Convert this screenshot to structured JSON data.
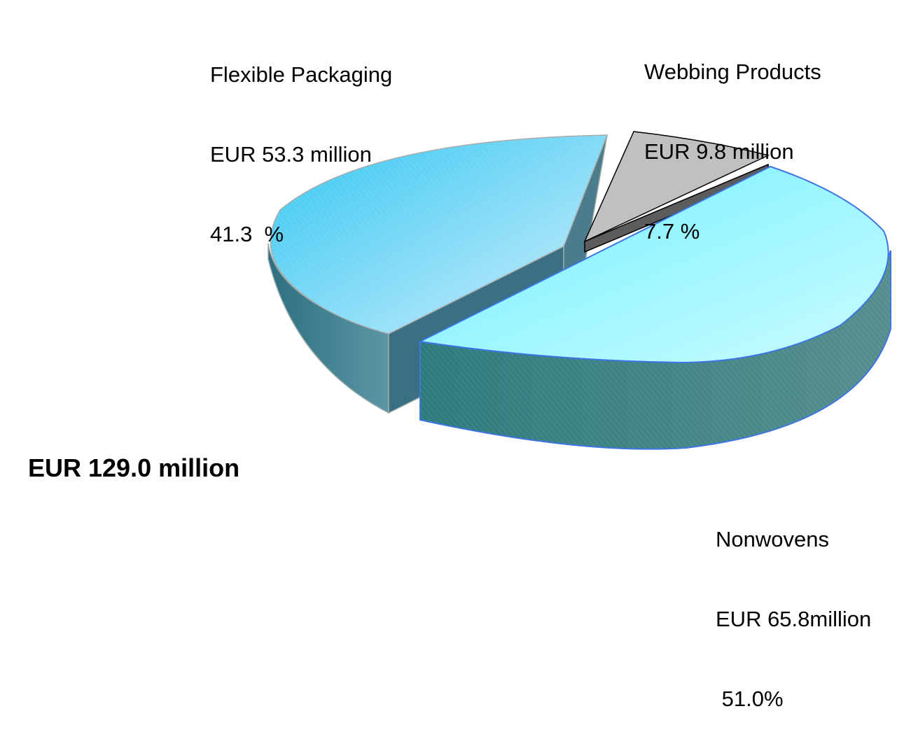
{
  "chart_data": {
    "type": "pie",
    "style": "3d-exploded",
    "total_label": "EUR 129.0 million",
    "slices": [
      {
        "category": "Flexible Packaging",
        "amount": "EUR 53.3 million",
        "percent_label": "41.3  %",
        "value": 41.3,
        "color": "#5ed0f8"
      },
      {
        "category": "Webbing Products",
        "amount": "EUR 9.8 million",
        "percent_label": "7.7 %",
        "value": 7.7,
        "color": "#c0c0c0"
      },
      {
        "category": "Nonwovens",
        "amount": "EUR 65.8million",
        "percent_label": " 51.0%",
        "value": 51.0,
        "color": "#8cf4ff"
      }
    ]
  }
}
